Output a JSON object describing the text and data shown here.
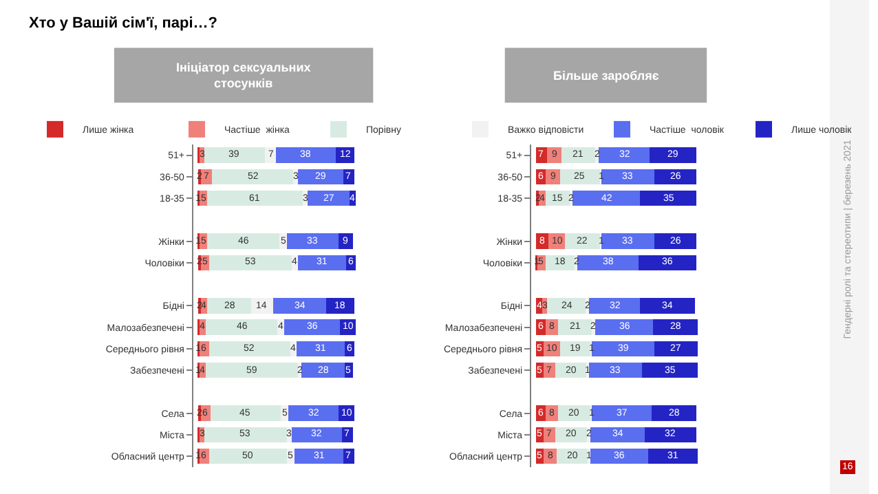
{
  "chart_data": [
    {
      "type": "bar",
      "orientation": "horizontal",
      "stacked": true,
      "title": "Ініціатор сексуальних стосунків",
      "legend": "top",
      "tick_labels": "y",
      "annotations": [
        "Хто у Вашій сім'ї, парі…?",
        "Гендерні ролі та стереотипи | березень 2021",
        "16"
      ],
      "categories": [
        "51+",
        "36-50",
        "18-35",
        null,
        "Жінки",
        "Чоловіки",
        null,
        "Бідні",
        "Малозабезпечені",
        "Середнього рівня",
        "Забезпечені",
        null,
        "Села",
        "Міста",
        "Обласний центр"
      ],
      "series": [
        {
          "name": "Лише жінка",
          "color": "#d42a2a",
          "values": [
            1,
            2,
            1,
            null,
            1,
            2,
            null,
            2,
            1,
            1,
            1,
            null,
            2,
            1,
            1
          ],
          "value_labels": [
            null,
            "2",
            "1",
            null,
            "1",
            "2",
            null,
            "2",
            null,
            "1",
            "1",
            null,
            "2",
            null,
            "1"
          ]
        },
        {
          "name": "Частіше  жінка",
          "color": "#f0807a",
          "values": [
            3,
            7,
            5,
            null,
            5,
            5,
            null,
            4,
            4,
            6,
            4,
            null,
            6,
            3,
            6
          ],
          "value_labels": [
            "3",
            "7",
            "5",
            null,
            "5",
            "5",
            null,
            "4",
            "4",
            "6",
            "4",
            null,
            "6",
            "3",
            "6"
          ]
        },
        {
          "name": "Порівну",
          "color": "#d8ebe3",
          "values": [
            39,
            52,
            61,
            null,
            46,
            53,
            null,
            28,
            46,
            52,
            59,
            null,
            45,
            53,
            50
          ],
          "value_labels": [
            "39",
            "52",
            "61",
            null,
            "46",
            "53",
            null,
            "28",
            "46",
            "52",
            "59",
            null,
            "45",
            "53",
            "50"
          ]
        },
        {
          "name": "Важко відповісти",
          "color": "#f2f2f2",
          "values": [
            7,
            3,
            3,
            null,
            5,
            4,
            null,
            14,
            4,
            4,
            2,
            null,
            5,
            3,
            5
          ],
          "value_labels": [
            "7",
            "3",
            "3",
            null,
            "5",
            "4",
            null,
            "14",
            "4",
            "4",
            "2",
            null,
            "5",
            "3",
            "5"
          ]
        },
        {
          "name": "Частіше  чоловік",
          "color": "#5a6ef0",
          "values": [
            38,
            29,
            27,
            null,
            33,
            31,
            null,
            34,
            36,
            31,
            28,
            null,
            32,
            32,
            31
          ],
          "value_labels": [
            "38",
            "29",
            "27",
            null,
            "33",
            "31",
            null,
            "34",
            "36",
            "31",
            "28",
            null,
            "32",
            "32",
            "31"
          ]
        },
        {
          "name": "Лише чоловік",
          "color": "#2424c4",
          "values": [
            12,
            7,
            4,
            null,
            9,
            6,
            null,
            18,
            10,
            6,
            5,
            null,
            10,
            7,
            7
          ],
          "value_labels": [
            "12",
            "7",
            "4",
            null,
            "9",
            "6",
            null,
            "18",
            "10",
            "6",
            "5",
            null,
            "10",
            "7",
            "7"
          ]
        }
      ]
    },
    {
      "type": "bar",
      "orientation": "horizontal",
      "stacked": true,
      "title": "Більше заробляє",
      "tick_labels": "y",
      "categories": [
        "51+",
        "36-50",
        "18-35",
        null,
        "Жінки",
        "Чоловіки",
        null,
        "Бідні",
        "Малозабезпечені",
        "Середнього рівня",
        "Забезпечені",
        null,
        "Села",
        "Міста",
        "Обласний центр"
      ],
      "series": [
        {
          "color": "#d42a2a",
          "values": [
            7,
            6,
            2,
            null,
            8,
            1,
            null,
            4,
            6,
            5,
            5,
            null,
            6,
            5,
            5
          ],
          "value_labels": [
            "7",
            "6",
            "2",
            null,
            "8",
            "1",
            null,
            "4",
            "6",
            "5",
            "5",
            null,
            "6",
            "5",
            "5"
          ]
        },
        {
          "color": "#f0807a",
          "values": [
            9,
            9,
            4,
            null,
            10,
            5,
            null,
            3,
            8,
            10,
            7,
            null,
            8,
            7,
            8
          ],
          "value_labels": [
            "9",
            "9",
            "4",
            null,
            "10",
            "5",
            null,
            "3",
            "8",
            "10",
            "7",
            null,
            "8",
            "7",
            "8"
          ]
        },
        {
          "color": "#d8ebe3",
          "values": [
            21,
            25,
            15,
            null,
            22,
            18,
            null,
            24,
            21,
            19,
            20,
            null,
            20,
            20,
            20
          ],
          "value_labels": [
            "21",
            "25",
            "15",
            null,
            "22",
            "18",
            null,
            "24",
            "21",
            "19",
            "20",
            null,
            "20",
            "20",
            "20"
          ]
        },
        {
          "color": "#f2f2f2",
          "values": [
            2,
            1,
            2,
            null,
            1,
            2,
            null,
            2,
            2,
            1,
            1,
            null,
            1,
            2,
            1
          ],
          "value_labels": [
            "2",
            "1",
            "2",
            null,
            "1",
            "2",
            null,
            "2",
            "2",
            "1",
            "1",
            null,
            "1",
            "2",
            "1"
          ]
        },
        {
          "color": "#5a6ef0",
          "values": [
            32,
            33,
            42,
            null,
            33,
            38,
            null,
            32,
            36,
            39,
            33,
            null,
            37,
            34,
            36
          ],
          "value_labels": [
            "32",
            "33",
            "42",
            null,
            "33",
            "38",
            null,
            "32",
            "36",
            "39",
            "33",
            null,
            "37",
            "34",
            "36"
          ]
        },
        {
          "color": "#2424c4",
          "values": [
            29,
            26,
            35,
            null,
            26,
            36,
            null,
            34,
            28,
            27,
            35,
            null,
            28,
            32,
            31
          ],
          "value_labels": [
            "29",
            "26",
            "35",
            null,
            "26",
            "36",
            null,
            "34",
            "28",
            "27",
            "35",
            null,
            "28",
            "32",
            "31"
          ]
        }
      ]
    }
  ]
}
